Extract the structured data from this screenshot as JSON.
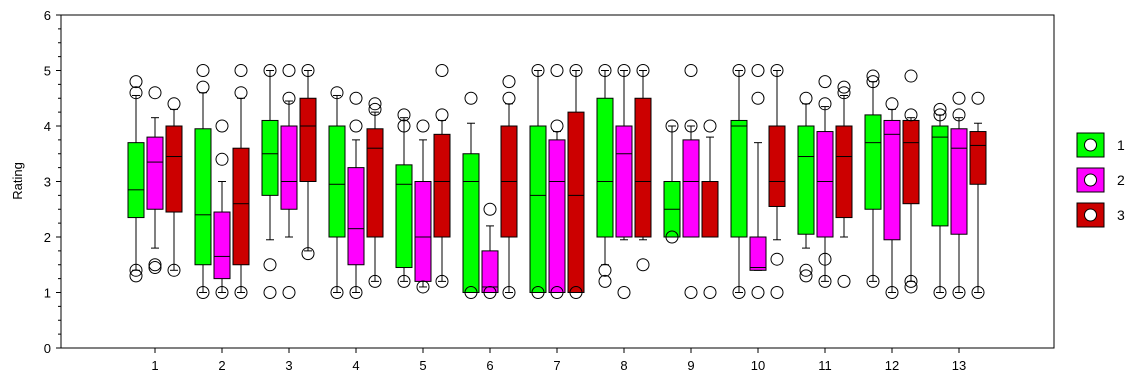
{
  "chart_data": {
    "type": "boxplot",
    "ylabel": "Rating",
    "ylim": [
      0,
      6
    ],
    "yticks": [
      0,
      1,
      2,
      3,
      4,
      5,
      6
    ],
    "categories": [
      "1",
      "2",
      "3",
      "4",
      "5",
      "6",
      "7",
      "8",
      "9",
      "10",
      "11",
      "12",
      "13"
    ],
    "grid": false,
    "legend_position": "right",
    "series": [
      {
        "name": "1",
        "color": "#00ff00",
        "boxes": [
          {
            "q1": 2.35,
            "median": 2.85,
            "q3": 3.7,
            "min": 1.4,
            "max": 4.55,
            "outliers": [
              1.3,
              1.4,
              4.6,
              4.8
            ]
          },
          {
            "q1": 1.5,
            "median": 2.4,
            "q3": 3.95,
            "min": 1.0,
            "max": 4.6,
            "outliers": [
              1.0,
              4.7,
              5.0
            ]
          },
          {
            "q1": 2.75,
            "median": 3.5,
            "q3": 4.1,
            "min": 1.95,
            "max": 5.0,
            "outliers": [
              1.0,
              1.5,
              5.0
            ]
          },
          {
            "q1": 2.0,
            "median": 2.95,
            "q3": 4.0,
            "min": 1.0,
            "max": 4.55,
            "outliers": [
              1.0,
              4.6
            ]
          },
          {
            "q1": 1.45,
            "median": 2.95,
            "q3": 3.3,
            "min": 1.2,
            "max": 4.15,
            "outliers": [
              1.2,
              4.0,
              4.2
            ]
          },
          {
            "q1": 1.0,
            "median": 3.0,
            "q3": 3.5,
            "min": 1.0,
            "max": 4.05,
            "outliers": [
              1.0,
              4.5
            ]
          },
          {
            "q1": 1.0,
            "median": 2.75,
            "q3": 4.0,
            "min": 1.0,
            "max": 5.0,
            "outliers": [
              1.0,
              5.0
            ]
          },
          {
            "q1": 2.0,
            "median": 3.0,
            "q3": 4.5,
            "min": 1.5,
            "max": 5.0,
            "outliers": [
              1.2,
              1.4,
              5.0
            ]
          },
          {
            "q1": 2.0,
            "median": 2.5,
            "q3": 3.0,
            "min": 2.0,
            "max": 4.0,
            "outliers": [
              2.0,
              4.0
            ]
          },
          {
            "q1": 2.0,
            "median": 4.0,
            "q3": 4.1,
            "min": 1.0,
            "max": 5.0,
            "outliers": [
              1.0,
              5.0
            ]
          },
          {
            "q1": 2.05,
            "median": 3.45,
            "q3": 4.0,
            "min": 1.8,
            "max": 4.4,
            "outliers": [
              1.3,
              1.4,
              4.5
            ]
          },
          {
            "q1": 2.5,
            "median": 3.7,
            "q3": 4.2,
            "min": 1.2,
            "max": 4.8,
            "outliers": [
              1.2,
              4.8,
              4.9
            ]
          },
          {
            "q1": 2.2,
            "median": 3.8,
            "q3": 4.0,
            "min": 1.0,
            "max": 4.2,
            "outliers": [
              1.0,
              4.2,
              4.3
            ]
          }
        ]
      },
      {
        "name": "2",
        "color": "#ff00ff",
        "boxes": [
          {
            "q1": 2.5,
            "median": 3.35,
            "q3": 3.8,
            "min": 1.8,
            "max": 4.15,
            "outliers": [
              1.45,
              1.5,
              4.6
            ]
          },
          {
            "q1": 1.25,
            "median": 1.65,
            "q3": 2.45,
            "min": 1.0,
            "max": 3.0,
            "outliers": [
              1.0,
              3.4,
              4.0
            ]
          },
          {
            "q1": 2.5,
            "median": 3.0,
            "q3": 4.0,
            "min": 2.0,
            "max": 4.45,
            "outliers": [
              1.0,
              4.5,
              5.0
            ]
          },
          {
            "q1": 1.5,
            "median": 2.15,
            "q3": 3.25,
            "min": 1.0,
            "max": 3.75,
            "outliers": [
              1.0,
              4.0,
              4.5
            ]
          },
          {
            "q1": 1.2,
            "median": 2.0,
            "q3": 3.0,
            "min": 1.1,
            "max": 3.75,
            "outliers": [
              1.1,
              4.0
            ]
          },
          {
            "q1": 1.0,
            "median": 1.1,
            "q3": 1.75,
            "min": 1.0,
            "max": 2.2,
            "outliers": [
              1.0,
              2.5
            ]
          },
          {
            "q1": 1.0,
            "median": 3.0,
            "q3": 3.75,
            "min": 1.0,
            "max": 3.9,
            "outliers": [
              1.0,
              4.0,
              5.0
            ]
          },
          {
            "q1": 2.0,
            "median": 3.5,
            "q3": 4.0,
            "min": 1.95,
            "max": 5.0,
            "outliers": [
              1.0,
              5.0
            ]
          },
          {
            "q1": 2.0,
            "median": 3.0,
            "q3": 3.75,
            "min": 2.0,
            "max": 4.0,
            "outliers": [
              1.0,
              4.0,
              5.0
            ]
          },
          {
            "q1": 1.4,
            "median": 1.45,
            "q3": 2.0,
            "min": 1.4,
            "max": 3.7,
            "outliers": [
              1.0,
              4.5,
              5.0
            ]
          },
          {
            "q1": 2.0,
            "median": 3.0,
            "q3": 3.9,
            "min": 1.2,
            "max": 4.35,
            "outliers": [
              1.2,
              1.6,
              4.4,
              4.8
            ]
          },
          {
            "q1": 1.95,
            "median": 3.85,
            "q3": 4.1,
            "min": 1.0,
            "max": 4.3,
            "outliers": [
              1.0,
              4.4
            ]
          },
          {
            "q1": 2.05,
            "median": 3.6,
            "q3": 3.95,
            "min": 1.0,
            "max": 4.15,
            "outliers": [
              1.0,
              4.2,
              4.5
            ]
          }
        ]
      },
      {
        "name": "3",
        "color": "#cc0000",
        "boxes": [
          {
            "q1": 2.45,
            "median": 3.45,
            "q3": 4.0,
            "min": 1.4,
            "max": 4.3,
            "outliers": [
              1.4,
              4.4
            ]
          },
          {
            "q1": 1.5,
            "median": 2.6,
            "q3": 3.6,
            "min": 1.0,
            "max": 4.5,
            "outliers": [
              1.0,
              4.6,
              5.0
            ]
          },
          {
            "q1": 3.0,
            "median": 4.0,
            "q3": 4.5,
            "min": 1.75,
            "max": 5.0,
            "outliers": [
              1.7,
              5.0
            ]
          },
          {
            "q1": 2.0,
            "median": 3.6,
            "q3": 3.95,
            "min": 1.2,
            "max": 4.25,
            "outliers": [
              1.2,
              4.3,
              4.4
            ]
          },
          {
            "q1": 2.0,
            "median": 3.0,
            "q3": 3.85,
            "min": 1.2,
            "max": 4.1,
            "outliers": [
              1.2,
              4.2,
              5.0
            ]
          },
          {
            "q1": 2.0,
            "median": 3.0,
            "q3": 4.0,
            "min": 1.0,
            "max": 4.4,
            "outliers": [
              1.0,
              4.5,
              4.8
            ]
          },
          {
            "q1": 1.0,
            "median": 2.75,
            "q3": 4.25,
            "min": 1.0,
            "max": 5.0,
            "outliers": [
              1.0,
              5.0
            ]
          },
          {
            "q1": 2.0,
            "median": 3.0,
            "q3": 4.5,
            "min": 1.95,
            "max": 5.0,
            "outliers": [
              1.5,
              5.0
            ]
          },
          {
            "q1": 2.0,
            "median": 3.0,
            "q3": 3.0,
            "min": 2.0,
            "max": 3.8,
            "outliers": [
              1.0,
              4.0
            ]
          },
          {
            "q1": 2.55,
            "median": 3.0,
            "q3": 4.0,
            "min": 1.95,
            "max": 5.0,
            "outliers": [
              1.0,
              1.6,
              5.0
            ]
          },
          {
            "q1": 2.35,
            "median": 3.45,
            "q3": 4.0,
            "min": 2.0,
            "max": 4.55,
            "outliers": [
              1.2,
              4.6,
              4.7
            ]
          },
          {
            "q1": 2.6,
            "median": 3.7,
            "q3": 4.1,
            "min": 1.2,
            "max": 4.15,
            "outliers": [
              1.1,
              1.2,
              4.2,
              4.9
            ]
          },
          {
            "q1": 2.95,
            "median": 3.65,
            "q3": 3.9,
            "min": 1.0,
            "max": 4.05,
            "outliers": [
              1.0,
              4.5
            ]
          }
        ]
      }
    ]
  }
}
